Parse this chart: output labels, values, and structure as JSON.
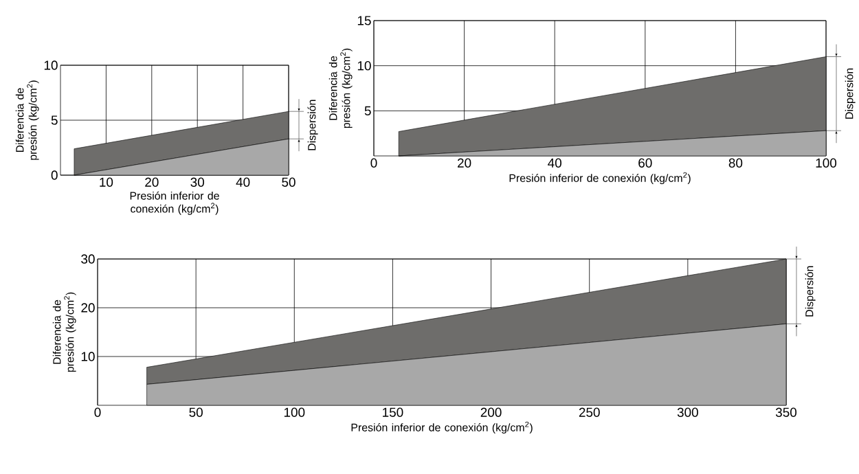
{
  "chart_data": [
    {
      "type": "area",
      "stacked": true,
      "xlabel": "Presión inferior de conexión (kg/cm$^{2}$)",
      "ylabel": "Diferencia de presión (kg/cm$^{2}$)",
      "x": [
        3,
        50
      ],
      "series": [
        {
          "color": "#a8a8a8",
          "values": [
            0,
            3.3
          ]
        },
        {
          "color": "#6e6d6b",
          "values": [
            2.4,
            2.5
          ]
        }
      ],
      "xlim": [
        0,
        50
      ],
      "xticks": [
        10,
        20,
        30,
        40,
        50
      ],
      "ylim": [
        0,
        10
      ],
      "yticks": [
        0,
        5,
        10
      ],
      "grid": true,
      "annotations": [
        "Dispersión"
      ]
    },
    {
      "type": "area",
      "stacked": true,
      "xlabel": "Presión inferior de conexión (kg/cm$^{2}$)",
      "ylabel": "Diferencia de presión (kg/cm$^{2}$)",
      "x": [
        5.5,
        100
      ],
      "series": [
        {
          "color": "#a8a8a8",
          "values": [
            0,
            2.8
          ]
        },
        {
          "color": "#6e6d6b",
          "values": [
            2.7,
            8.2
          ]
        }
      ],
      "xlim": [
        0,
        100
      ],
      "xticks": [
        0,
        20,
        40,
        60,
        80,
        100
      ],
      "ylim": [
        0,
        15
      ],
      "yticks": [
        5,
        10,
        15
      ],
      "grid": true,
      "annotations": [
        "Dispersión"
      ]
    },
    {
      "type": "area",
      "stacked": true,
      "xlabel": "Presión inferior de conexión (kg/cm$^{2}$)",
      "ylabel": "Diferencia de presión (kg/cm$^{2}$)",
      "x": [
        25,
        350
      ],
      "series": [
        {
          "color": "#a8a8a8",
          "values": [
            4.3,
            16.7
          ]
        },
        {
          "color": "#6e6d6b",
          "values": [
            3.5,
            13.3
          ]
        }
      ],
      "xlim": [
        0,
        350
      ],
      "xticks": [
        0,
        50,
        100,
        150,
        200,
        250,
        300,
        350
      ],
      "ylim": [
        0,
        30
      ],
      "yticks": [
        10,
        20,
        30
      ],
      "grid": true,
      "annotations": [
        "Dispersión"
      ]
    }
  ]
}
